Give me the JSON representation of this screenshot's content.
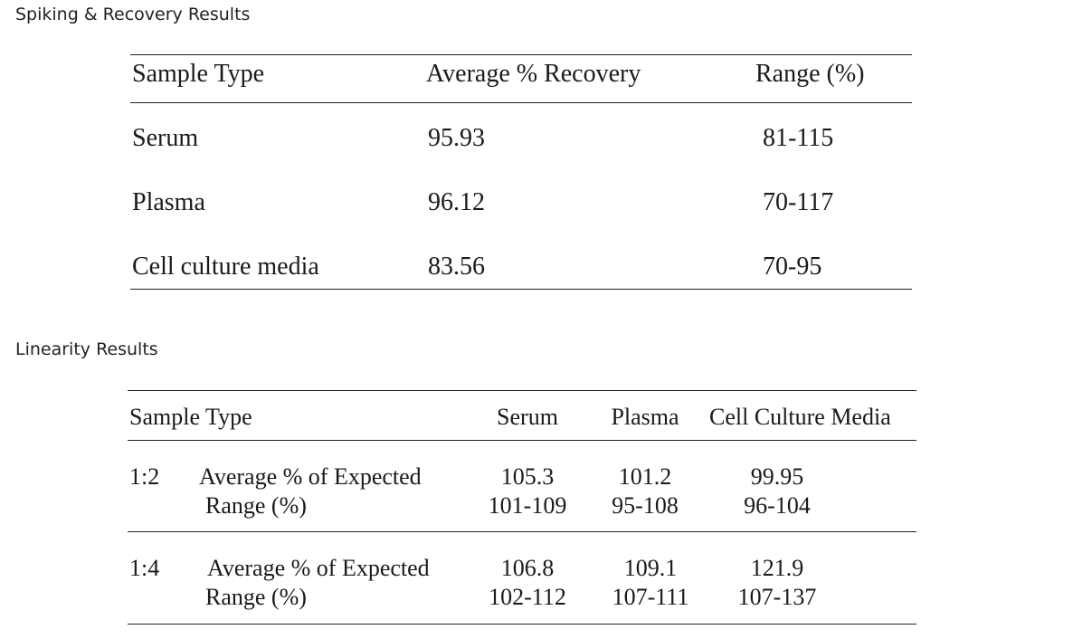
{
  "sections": {
    "spiking_heading": "Spiking & Recovery Results",
    "linearity_heading": "Linearity Results"
  },
  "recovery_table": {
    "headers": [
      "Sample Type",
      "Average % Recovery",
      "Range (%)"
    ],
    "rows": [
      {
        "sample": "Serum",
        "average": "95.93",
        "range": "81-115"
      },
      {
        "sample": "Plasma",
        "average": "96.12",
        "range": "70-117"
      },
      {
        "sample": "Cell culture media",
        "average": "83.56",
        "range": "70-95"
      }
    ]
  },
  "linearity_table": {
    "headers": [
      "Sample Type",
      "Serum",
      "Plasma",
      "Cell Culture Media"
    ],
    "groups": [
      {
        "dilution": "1:2",
        "avg_label": "Average % of Expected",
        "range_label": "Range (%)",
        "avg": {
          "serum": "105.3",
          "plasma": "101.2",
          "media": "99.95"
        },
        "range": {
          "serum": "101-109",
          "plasma": "95-108",
          "media": "96-104"
        }
      },
      {
        "dilution": "1:4",
        "avg_label": "Average % of Expected",
        "range_label": "Range (%)",
        "avg": {
          "serum": "106.8",
          "plasma": "109.1",
          "media": "121.9"
        },
        "range": {
          "serum": "102-112",
          "plasma": "107-111",
          "media": "107-137"
        }
      }
    ]
  }
}
